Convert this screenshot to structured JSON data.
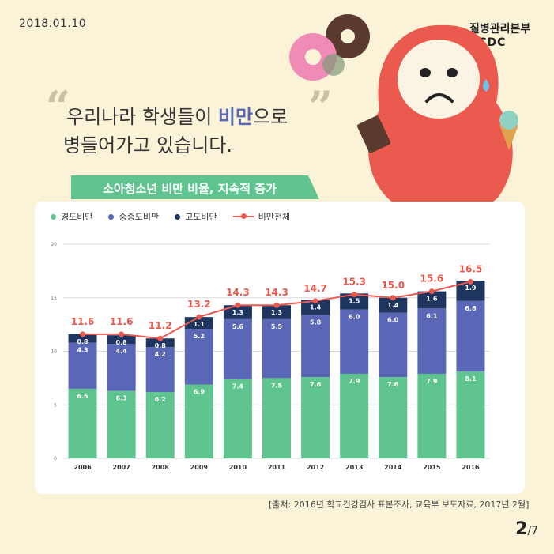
{
  "date": "2018.01.10",
  "logo": {
    "org": "질병관리본부",
    "abbr": "KCDC"
  },
  "headline": {
    "quote_open": "“",
    "quote_close": "”",
    "line1_pre": "우리나라 학생들이 ",
    "line1_em": "비만",
    "line1_post": "으로",
    "line2": "병들어가고 있습니다."
  },
  "banner": "소아청소년 비만 비율, 지속적 증가",
  "legend": [
    "경도비만",
    "중증도비만",
    "고도비만",
    "비만전체"
  ],
  "colors": {
    "background": "#fbf3d8",
    "mild": "#5fc48f",
    "moderate": "#5a67b6",
    "severe": "#1e3560",
    "total": "#eb5a4e",
    "banner": "#5fc48f",
    "emphasis": "#5869b6"
  },
  "chart_data": {
    "type": "bar",
    "stacked": true,
    "categories": [
      "2006",
      "2007",
      "2008",
      "2009",
      "2010",
      "2011",
      "2012",
      "2013",
      "2014",
      "2015",
      "2016"
    ],
    "series": [
      {
        "name": "경도비만",
        "values": [
          6.5,
          6.3,
          6.2,
          6.9,
          7.4,
          7.5,
          7.6,
          7.9,
          7.6,
          7.9,
          8.1
        ]
      },
      {
        "name": "중증도비만",
        "values": [
          4.3,
          4.4,
          4.2,
          5.2,
          5.6,
          5.5,
          5.8,
          6.0,
          6.0,
          6.1,
          6.6
        ]
      },
      {
        "name": "고도비만",
        "values": [
          0.8,
          0.8,
          0.8,
          1.1,
          1.3,
          1.3,
          1.4,
          1.5,
          1.4,
          1.6,
          1.9
        ]
      }
    ],
    "line": {
      "name": "비만전체",
      "values": [
        11.6,
        11.6,
        11.2,
        13.2,
        14.3,
        14.3,
        14.7,
        15.3,
        15.0,
        15.6,
        16.5
      ]
    },
    "ylim": [
      0,
      20
    ],
    "yticks": [
      0,
      5,
      10,
      15,
      20
    ],
    "grid": true,
    "legend_position": "top-left"
  },
  "source": "[출처: 2016년 학교건강검사 표본조사, 교육부 보도자료, 2017년 2월]",
  "page": {
    "current": "2",
    "total": "/7"
  }
}
